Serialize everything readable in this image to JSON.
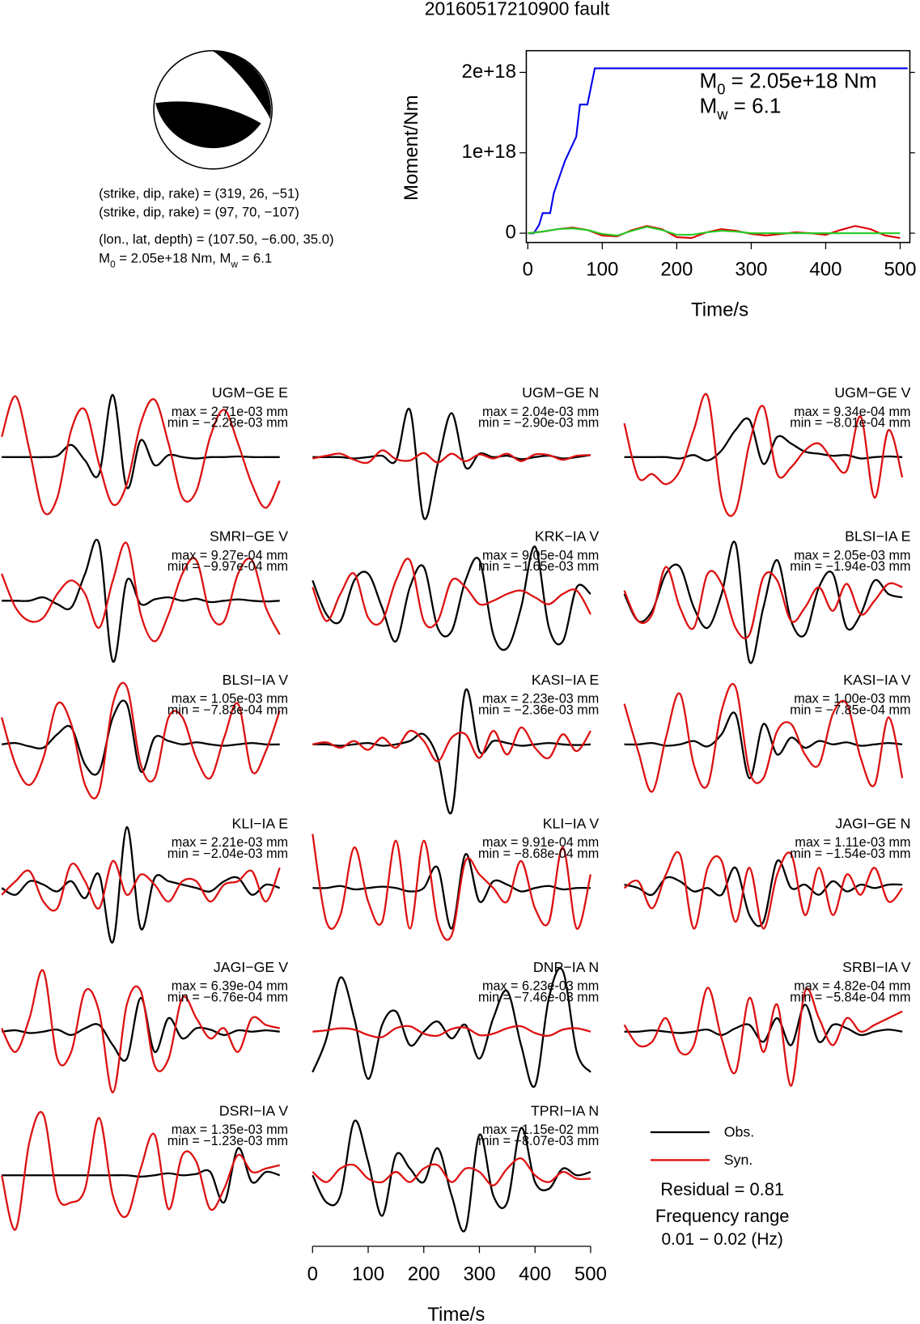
{
  "title": "20160517210900 fault",
  "mechanism": {
    "lines": [
      "(strike, dip, rake) = (319, 26, −51)",
      "(strike, dip, rake) = (97, 70, −107)",
      "(lon., lat, depth) = (107.50, −6.00, 35.0)"
    ],
    "moment_parts": [
      "M",
      "0",
      " = 2.05e+18 Nm, M",
      "w",
      " = 6.1"
    ]
  },
  "chart_data": [
    {
      "type": "line",
      "xlabel": "Time/s",
      "ylabel": "Moment/Nm",
      "annotations": [
        [
          "M",
          "0",
          " = 2.05e+18 Nm"
        ],
        [
          "M",
          "w",
          " = 6.1"
        ]
      ],
      "xlim": [
        -2,
        513
      ],
      "xticks": [
        0,
        100,
        200,
        300,
        400,
        500
      ],
      "ylim": [
        -1.16e+17,
        2.27e+18
      ],
      "yticks": [
        0,
        {
          "value": 1e+18,
          "label": "1e+18"
        },
        {
          "value": 2e+18,
          "label": "2e+18"
        }
      ],
      "series": [
        {
          "color": "#0000ee",
          "x": [
            0,
            8,
            15,
            20,
            30,
            35,
            50,
            65,
            70,
            80,
            90,
            510
          ],
          "values": [
            0,
            0,
            1e+17,
            2.5e+17,
            2.5e+17,
            5e+17,
            9e+17,
            1.2e+18,
            1.6e+18,
            1.6e+18,
            2.05e+18,
            2.05e+18
          ]
        },
        {
          "color": "#e00000",
          "x": [
            0,
            20,
            40,
            60,
            80,
            100,
            120,
            140,
            160,
            180,
            200,
            220,
            240,
            260,
            280,
            300,
            320,
            340,
            360,
            380,
            400,
            420,
            440,
            460,
            480,
            500
          ],
          "values": [
            0,
            2e+16,
            5e+16,
            7e+16,
            4e+16,
            -3e+16,
            -4e+16,
            4e+16,
            9e+16,
            5e+16,
            -5e+16,
            -6e+16,
            1e+16,
            5e+16,
            3e+16,
            -1e+16,
            -3e+16,
            -1e+16,
            1e+16,
            0,
            -2e+16,
            4e+16,
            9e+16,
            5e+16,
            -3e+16,
            -6e+16
          ]
        },
        {
          "color": "#22cc22",
          "x": [
            0,
            20,
            40,
            60,
            80,
            100,
            120,
            140,
            160,
            180,
            200,
            220,
            240,
            260,
            280,
            300,
            320,
            340,
            360,
            380,
            400,
            420,
            440,
            460,
            480,
            500
          ],
          "values": [
            0,
            2e+16,
            5e+16,
            6e+16,
            4e+16,
            -1e+16,
            -3e+16,
            3e+16,
            8e+16,
            4e+16,
            -2e+16,
            -2e+16,
            1e+16,
            3e+16,
            2e+16,
            0,
            0,
            0,
            0,
            0,
            0,
            0,
            0,
            0,
            0,
            0
          ]
        }
      ]
    },
    {
      "type": "waveforms",
      "xlabel": "Time/s",
      "x": [
        0,
        25,
        50,
        75,
        100,
        125,
        150,
        175,
        200,
        225,
        250,
        275,
        300,
        325,
        350,
        375,
        400,
        425,
        450,
        475,
        500
      ],
      "xlim": [
        -3,
        515
      ],
      "xticks": [
        0,
        100,
        200,
        300,
        400,
        500
      ],
      "ylim": [
        -100,
        100
      ],
      "traces": [
        {
          "name": "Obs.",
          "color": "#000000"
        },
        {
          "name": "Syn.",
          "color": "#dd1111"
        }
      ],
      "residual": "Residual = 0.81",
      "frequency_label": "Frequency range",
      "frequency_range": "0.01 − 0.02 (Hz)",
      "panels": [
        {
          "station": "UGM−GE E",
          "max": "max = 2.71e-03 mm",
          "min": "min = −2.28e-03 mm",
          "obs": [
            0,
            0,
            0,
            0,
            2,
            18,
            -5,
            -25,
            92,
            -45,
            25,
            -12,
            3,
            0,
            -2,
            0,
            0,
            1,
            0,
            0,
            0
          ],
          "syn": [
            30,
            90,
            10,
            -80,
            -60,
            40,
            70,
            -10,
            -70,
            -40,
            50,
            85,
            20,
            -60,
            -50,
            30,
            70,
            20,
            -40,
            -75,
            -35
          ]
        },
        {
          "station": "UGM−GE N",
          "max": "max = 2.04e-03 mm",
          "min": "min = −2.90e-03 mm",
          "obs": [
            0,
            0,
            0,
            -2,
            0,
            2,
            -5,
            70,
            -90,
            -10,
            65,
            -15,
            5,
            0,
            2,
            -3,
            0,
            2,
            -2,
            0,
            3
          ],
          "syn": [
            -2,
            2,
            5,
            -4,
            -8,
            10,
            -3,
            -5,
            6,
            -8,
            5,
            -6,
            4,
            -2,
            5,
            -6,
            4,
            3,
            -4,
            2,
            3
          ]
        },
        {
          "station": "UGM−GE V",
          "max": "max = 9.34e-04 mm",
          "min": "min = −8.01e-04 mm",
          "obs": [
            0,
            0,
            0,
            0,
            -2,
            3,
            -5,
            10,
            40,
            55,
            -10,
            30,
            20,
            8,
            5,
            2,
            3,
            -2,
            0,
            1,
            0
          ],
          "syn": [
            50,
            -30,
            -25,
            -40,
            -20,
            40,
            90,
            -60,
            -80,
            20,
            75,
            -25,
            -15,
            10,
            20,
            -5,
            -20,
            60,
            -60,
            40,
            -30
          ]
        },
        {
          "station": "SMRI−GE V",
          "max": "max = 9.27e-04 mm",
          "min": "min = −9.97e-04 mm",
          "obs": [
            0,
            0,
            0,
            5,
            -5,
            -10,
            40,
            85,
            -90,
            30,
            -5,
            2,
            5,
            0,
            3,
            -2,
            0,
            2,
            0,
            -1,
            0
          ],
          "syn": [
            40,
            -10,
            -30,
            -25,
            10,
            30,
            10,
            -40,
            30,
            85,
            -20,
            -60,
            -20,
            40,
            60,
            -20,
            -30,
            40,
            60,
            -10,
            -50
          ]
        },
        {
          "station": "KRK−IA V",
          "max": "max = 9.05e-04 mm",
          "min": "min = −1.65e-03 mm",
          "obs": [
            30,
            -20,
            -30,
            30,
            40,
            -10,
            -60,
            20,
            50,
            -40,
            -45,
            30,
            60,
            -50,
            -70,
            -10,
            80,
            -40,
            -60,
            20,
            10
          ],
          "syn": [
            20,
            -30,
            10,
            40,
            -25,
            -30,
            30,
            60,
            -30,
            -30,
            30,
            20,
            -5,
            0,
            10,
            15,
            5,
            -5,
            10,
            15,
            -20
          ]
        },
        {
          "station": "BLSI−IA E",
          "max": "max = 2.05e-03 mm",
          "min": "min = −1.94e-03 mm",
          "obs": [
            10,
            -30,
            -15,
            40,
            50,
            -10,
            -40,
            10,
            85,
            -90,
            -10,
            60,
            -30,
            -50,
            20,
            40,
            -40,
            -20,
            30,
            10,
            5
          ],
          "syn": [
            15,
            -30,
            -20,
            50,
            -10,
            -40,
            40,
            25,
            -40,
            -50,
            35,
            30,
            -30,
            -10,
            20,
            -15,
            25,
            -20,
            0,
            25,
            20
          ]
        },
        {
          "station": "BLSI−IA V",
          "max": "max = 1.05e-03 mm",
          "min": "min = −7.83e-04 mm",
          "obs": [
            0,
            2,
            -3,
            -5,
            15,
            25,
            -30,
            -40,
            40,
            60,
            -40,
            10,
            5,
            0,
            3,
            0,
            -2,
            0,
            2,
            0,
            0
          ],
          "syn": [
            40,
            -30,
            -60,
            -20,
            60,
            30,
            -60,
            -70,
            60,
            85,
            -30,
            -50,
            40,
            40,
            -20,
            -50,
            10,
            60,
            -40,
            -10,
            50
          ]
        },
        {
          "station": "KASI−IA E",
          "max": "max = 2.23e-03 mm",
          "min": "min = −2.36e-03 mm",
          "obs": [
            0,
            0,
            -2,
            0,
            2,
            -2,
            0,
            5,
            15,
            -20,
            -100,
            80,
            -10,
            5,
            2,
            -2,
            0,
            2,
            0,
            -1,
            0
          ],
          "syn": [
            0,
            3,
            -5,
            5,
            -8,
            10,
            -5,
            20,
            5,
            -25,
            10,
            15,
            -20,
            20,
            -15,
            25,
            -5,
            -20,
            15,
            -10,
            20
          ]
        },
        {
          "station": "KASI−IA V",
          "max": "max = 1.00e-03 mm",
          "min": "min = −7.85e-04 mm",
          "obs": [
            0,
            0,
            2,
            -2,
            0,
            5,
            -3,
            15,
            45,
            -50,
            30,
            -15,
            10,
            -5,
            5,
            0,
            3,
            -2,
            0,
            2,
            0
          ],
          "syn": [
            60,
            -10,
            -70,
            10,
            75,
            -30,
            -60,
            50,
            85,
            -40,
            -50,
            20,
            30,
            -15,
            -30,
            45,
            60,
            -20,
            -60,
            40,
            -50
          ]
        },
        {
          "station": "KLI−IA E",
          "max": "max = 2.21e-03 mm",
          "min": "min = −2.04e-03 mm",
          "obs": [
            0,
            -10,
            10,
            5,
            -5,
            10,
            -15,
            20,
            -80,
            90,
            -60,
            15,
            10,
            5,
            0,
            -5,
            10,
            15,
            -10,
            5,
            0
          ],
          "syn": [
            -10,
            10,
            25,
            -20,
            -30,
            35,
            10,
            -30,
            40,
            -10,
            20,
            5,
            -20,
            10,
            10,
            -20,
            5,
            10,
            25,
            -20,
            30
          ]
        },
        {
          "station": "KLI−IA V",
          "max": "max = 9.91e-04 mm",
          "min": "min = −8.68e-04 mm",
          "obs": [
            0,
            0,
            3,
            -2,
            0,
            2,
            0,
            -5,
            0,
            30,
            -60,
            50,
            -20,
            10,
            5,
            -5,
            0,
            3,
            -2,
            0,
            0
          ],
          "syn": [
            80,
            -50,
            -40,
            60,
            -20,
            -50,
            70,
            -60,
            70,
            -50,
            -70,
            40,
            20,
            0,
            -20,
            40,
            -30,
            -50,
            60,
            -60,
            20
          ]
        },
        {
          "station": "JAGI−GE N",
          "max": "max = 1.11e-03 mm",
          "min": "min = −1.54e-03 mm",
          "obs": [
            5,
            0,
            -10,
            15,
            10,
            -5,
            0,
            -10,
            30,
            -40,
            -50,
            40,
            0,
            5,
            -10,
            10,
            -5,
            5,
            0,
            5,
            5
          ],
          "syn": [
            0,
            10,
            -30,
            20,
            50,
            -60,
            30,
            40,
            -50,
            30,
            -60,
            20,
            50,
            -40,
            30,
            -40,
            20,
            -10,
            30,
            -20,
            0
          ]
        },
        {
          "station": "JAGI−GE V",
          "max": "max = 6.39e-04 mm",
          "min": "min = −6.76e-04 mm",
          "obs": [
            0,
            2,
            -2,
            0,
            3,
            -5,
            5,
            10,
            -20,
            -40,
            50,
            -30,
            20,
            -10,
            5,
            3,
            -5,
            2,
            0,
            2,
            0
          ],
          "syn": [
            5,
            -30,
            20,
            90,
            -40,
            -30,
            60,
            30,
            -90,
            40,
            60,
            -50,
            -40,
            50,
            20,
            -10,
            5,
            -30,
            20,
            10,
            5
          ]
        },
        {
          "station": "DNP−IA N",
          "max": "max = 6.23e-03 mm",
          "min": "min = −7.46e-03 mm",
          "obs": [
            -60,
            -10,
            80,
            20,
            -70,
            10,
            30,
            -20,
            0,
            15,
            -10,
            10,
            -40,
            20,
            60,
            -20,
            -80,
            50,
            90,
            -30,
            -60
          ],
          "syn": [
            0,
            2,
            5,
            3,
            -5,
            -8,
            5,
            8,
            -3,
            -6,
            4,
            6,
            -5,
            -3,
            5,
            8,
            -2,
            -6,
            3,
            5,
            0
          ]
        },
        {
          "station": "SRBI−IA V",
          "max": "max = 4.82e-04 mm",
          "min": "min = −5.84e-04 mm",
          "obs": [
            0,
            0,
            2,
            0,
            -2,
            0,
            3,
            -5,
            5,
            10,
            -15,
            20,
            -20,
            40,
            -15,
            10,
            5,
            -5,
            0,
            3,
            0
          ],
          "syn": [
            10,
            -20,
            -15,
            20,
            -30,
            -20,
            65,
            -10,
            -60,
            50,
            -30,
            40,
            -80,
            60,
            20,
            -20,
            20,
            0,
            10,
            20,
            30
          ]
        },
        {
          "station": "DSRI−IA V",
          "max": "max = 1.35e-03 mm",
          "min": "min = −1.23e-03 mm",
          "obs": [
            0,
            0,
            0,
            0,
            0,
            0,
            0,
            0,
            0,
            0,
            -2,
            0,
            3,
            0,
            2,
            5,
            -40,
            40,
            -10,
            5,
            0
          ],
          "syn": [
            0,
            -80,
            50,
            90,
            -30,
            -40,
            -20,
            85,
            -30,
            -60,
            10,
            60,
            -50,
            30,
            20,
            -50,
            -20,
            30,
            5,
            10,
            15
          ]
        },
        {
          "station": "TPRI−IA N",
          "max": "max = 1.15e-02 mm",
          "min": "min = −8.07e-03 mm",
          "obs": [
            0,
            -40,
            -30,
            80,
            20,
            -60,
            30,
            10,
            -10,
            40,
            -30,
            -80,
            60,
            -30,
            -40,
            70,
            -10,
            -20,
            10,
            0,
            5
          ],
          "syn": [
            5,
            -10,
            10,
            15,
            -5,
            -10,
            5,
            -10,
            10,
            15,
            -10,
            10,
            5,
            -15,
            10,
            25,
            0,
            -10,
            5,
            -5,
            -5
          ]
        }
      ]
    }
  ]
}
